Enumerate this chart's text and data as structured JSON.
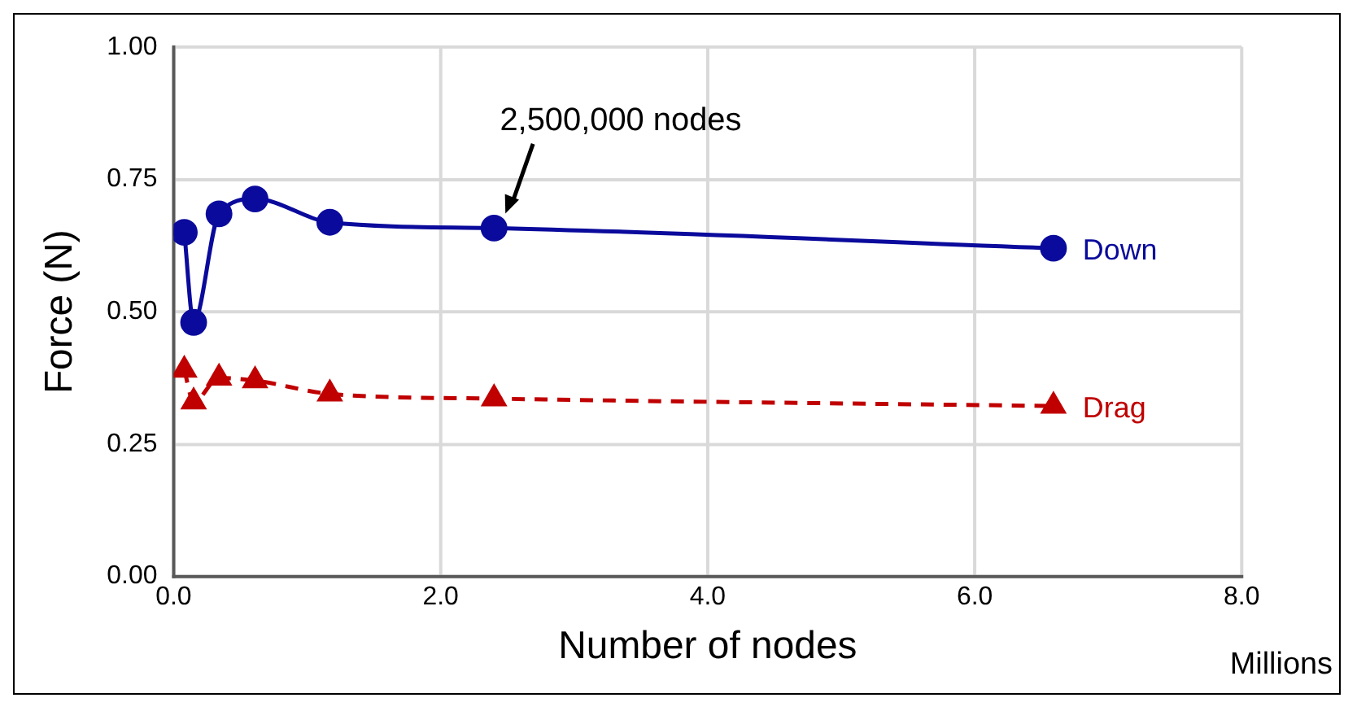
{
  "chart_data": {
    "type": "line",
    "xlabel": "Number of nodes",
    "ylabel": "Force (N)",
    "xlim": [
      0,
      8
    ],
    "xticks": [
      {
        "value": 0,
        "label": "0.0"
      },
      {
        "value": 2,
        "label": "2.0"
      },
      {
        "value": 4,
        "label": "4.0"
      },
      {
        "value": 6,
        "label": "6.0"
      },
      {
        "value": 8,
        "label": "8.0"
      }
    ],
    "ylim": [
      0,
      1
    ],
    "yticks": [
      {
        "value": 0,
        "label": "0.00"
      },
      {
        "value": 0.25,
        "label": "0.25"
      },
      {
        "value": 0.5,
        "label": "0.50"
      },
      {
        "value": 0.75,
        "label": "0.75"
      },
      {
        "value": 1,
        "label": "1.00"
      }
    ],
    "grid": true,
    "legend": false,
    "series": [
      {
        "name": "Down",
        "color": "#0a0a9c",
        "marker": "circle",
        "line_style": "solid",
        "x": [
          0.08,
          0.15,
          0.34,
          0.61,
          1.17,
          2.4,
          6.59
        ],
        "values": [
          0.65,
          0.48,
          0.685,
          0.713,
          0.669,
          0.658,
          0.62
        ]
      },
      {
        "name": "Drag",
        "color": "#c00000",
        "marker": "triangle",
        "line_style": "dashed",
        "x": [
          0.08,
          0.15,
          0.34,
          0.61,
          1.17,
          2.4,
          6.59
        ],
        "values": [
          0.39,
          0.33,
          0.375,
          0.37,
          0.345,
          0.336,
          0.322
        ]
      }
    ],
    "annotations": [
      {
        "text": "2,500,000 nodes",
        "x": 2.4,
        "y": 0.658
      },
      "Millions"
    ]
  }
}
